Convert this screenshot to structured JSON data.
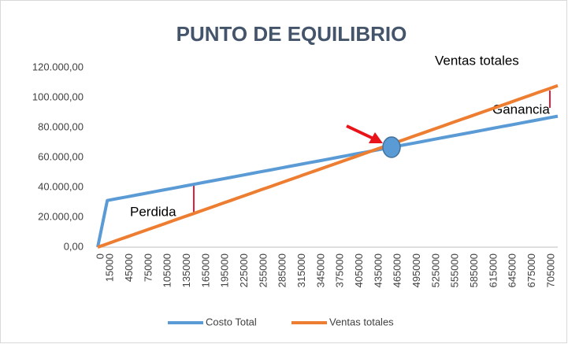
{
  "chart_data": {
    "type": "line",
    "title": "PUNTO DE EQUILIBRIO",
    "annotations": [
      "Ventas totales",
      "Ganancia",
      "Perdida"
    ],
    "categories": [
      0,
      15000,
      null,
      45000,
      null,
      75000,
      null,
      105000,
      null,
      135000,
      null,
      165000,
      null,
      195000,
      null,
      225000,
      null,
      255000,
      null,
      285000,
      null,
      315000,
      null,
      345000,
      null,
      375000,
      null,
      405000,
      null,
      435000,
      null,
      465000,
      null,
      495000,
      null,
      525000,
      null,
      555000,
      null,
      585000,
      null,
      615000,
      null,
      645000,
      null,
      675000,
      null,
      705000,
      null
    ],
    "series": [
      {
        "name": "Costo Total",
        "color": "#5b9bd5",
        "values": [
          0,
          31200,
          32400,
          33600,
          34800,
          36000,
          37200,
          38400,
          39600,
          40800,
          42000,
          43200,
          44400,
          45600,
          46800,
          48000,
          49200,
          50400,
          51600,
          52800,
          54000,
          55200,
          56400,
          57600,
          58800,
          60000,
          61200,
          62400,
          63600,
          64800,
          66000,
          67200,
          68400,
          69600,
          70800,
          72000,
          73200,
          74400,
          75600,
          76800,
          78000,
          79200,
          80400,
          81600,
          82800,
          84000,
          85200,
          86400,
          87600
        ]
      },
      {
        "name": "Ventas totales",
        "color": "#ed7d31",
        "values": [
          0,
          2250,
          4500,
          6750,
          9000,
          11250,
          13500,
          15750,
          18000,
          20250,
          22500,
          24750,
          27000,
          29250,
          31500,
          33750,
          36000,
          38250,
          40500,
          42750,
          45000,
          47250,
          49500,
          51750,
          54000,
          56250,
          58500,
          60750,
          63000,
          65250,
          67500,
          69750,
          72000,
          74250,
          76500,
          78750,
          81000,
          83250,
          85500,
          87750,
          90000,
          92250,
          94500,
          96750,
          99000,
          101250,
          103500,
          105750,
          108000
        ]
      }
    ],
    "ylim": [
      0,
      120000
    ],
    "yticks": [
      {
        "value": 0,
        "label": "0,00"
      },
      {
        "value": 20000,
        "label": "20.000,00"
      },
      {
        "value": 40000,
        "label": "40.000,00"
      },
      {
        "value": 60000,
        "label": "60.000,00"
      },
      {
        "value": 80000,
        "label": "80.000,00"
      },
      {
        "value": 100000,
        "label": "100.000,00"
      },
      {
        "value": 120000,
        "label": "120.000,00"
      }
    ],
    "grid": false,
    "legend": "bottom"
  }
}
